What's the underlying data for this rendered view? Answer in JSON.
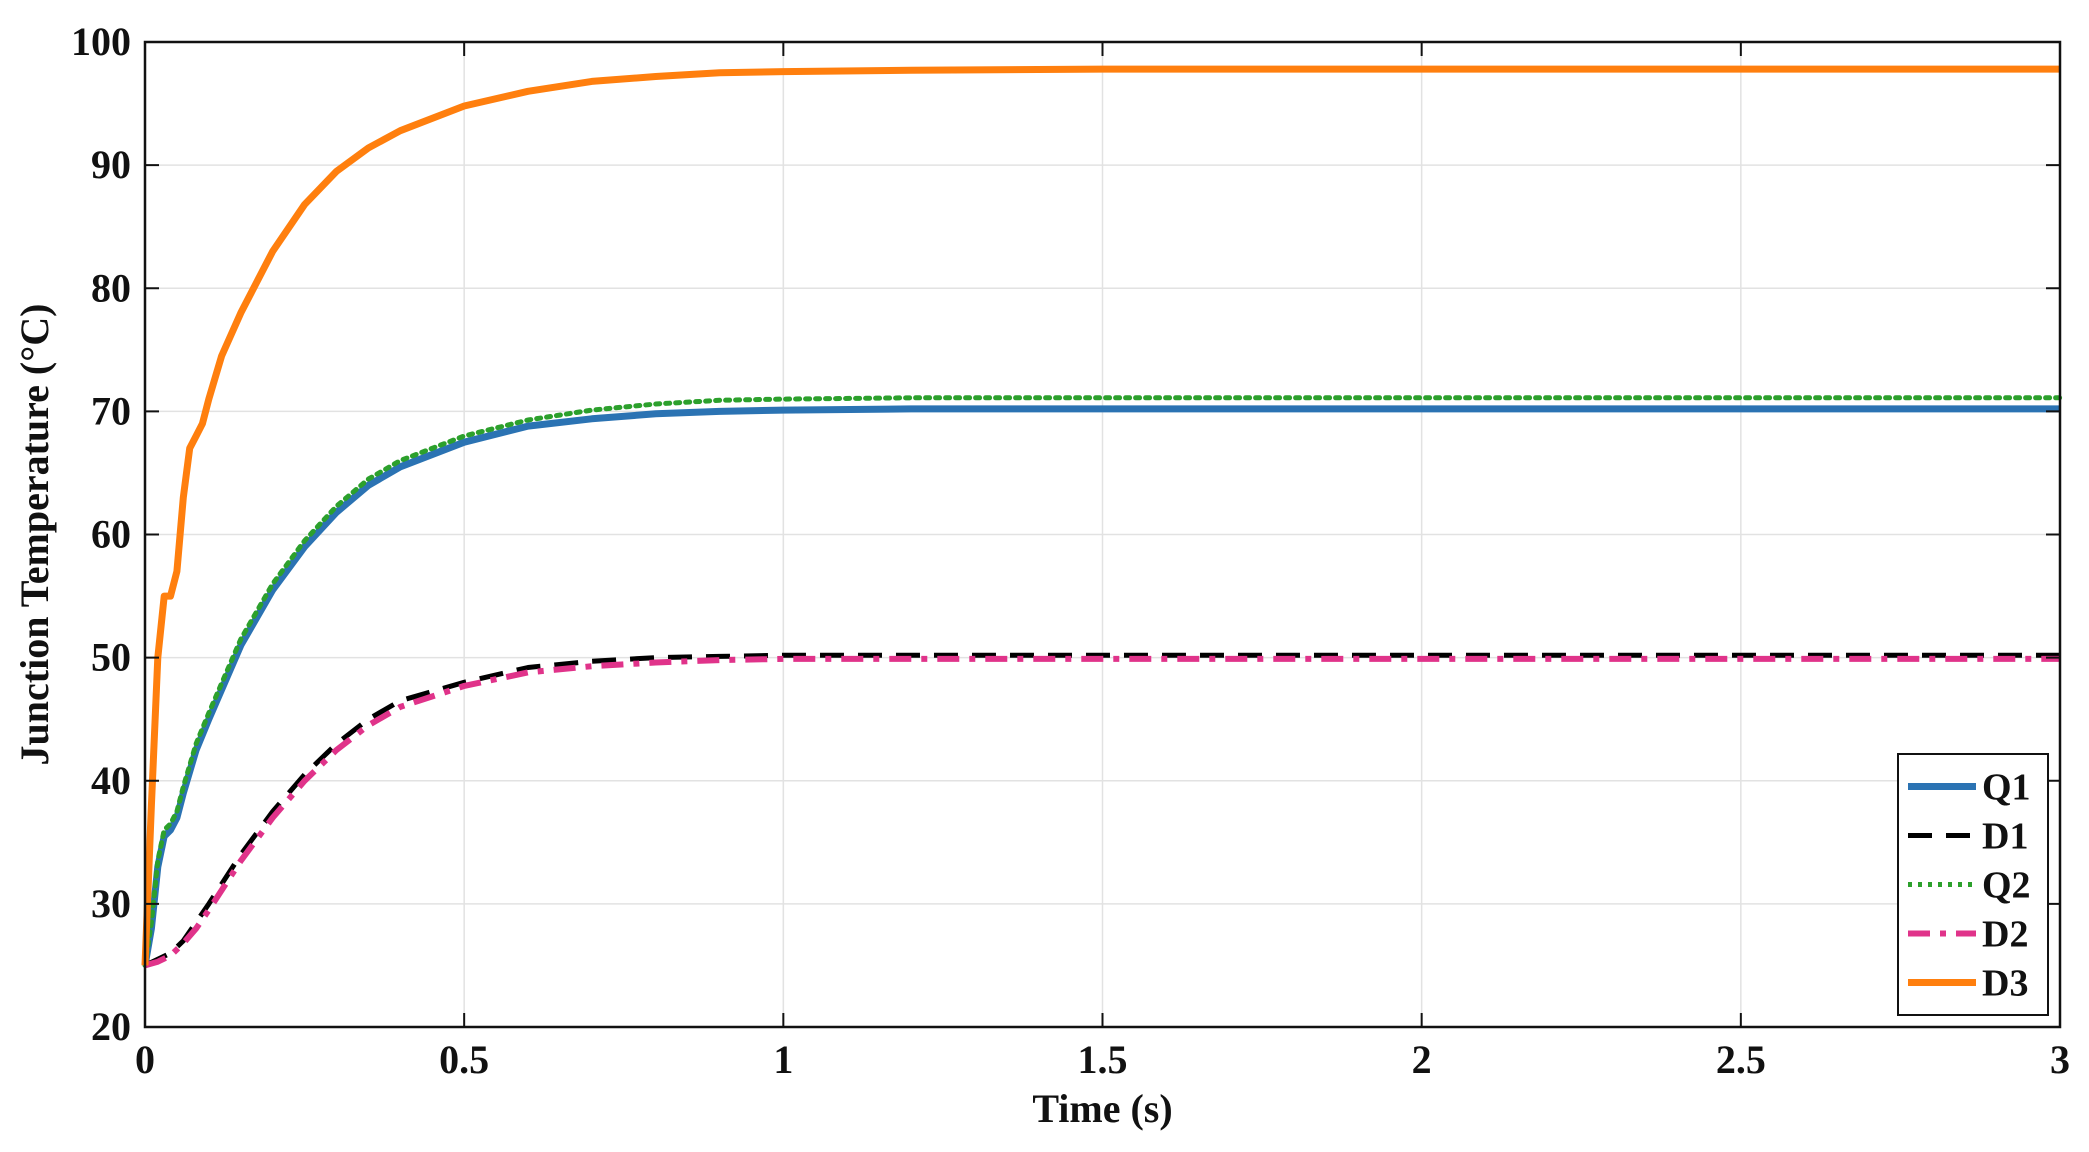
{
  "chart_data": {
    "type": "line",
    "xlabel": "Time (s)",
    "ylabel": "Junction Temperature (°C)",
    "xlim": [
      0,
      3
    ],
    "ylim": [
      20,
      100
    ],
    "xticks": [
      0,
      0.5,
      1,
      1.5,
      2,
      2.5,
      3
    ],
    "xtick_labels": [
      "0",
      "0.5",
      "1",
      "1.5",
      "2",
      "2.5",
      "3"
    ],
    "yticks": [
      20,
      30,
      40,
      50,
      60,
      70,
      80,
      90,
      100
    ],
    "ytick_labels": [
      "20",
      "30",
      "40",
      "50",
      "60",
      "70",
      "80",
      "90",
      "100"
    ],
    "grid": true,
    "legend_position": "bottom-right",
    "series": [
      {
        "name": "Q1",
        "color": "#2b73b3",
        "style": "solid",
        "x": [
          0,
          0.01,
          0.02,
          0.03,
          0.04,
          0.05,
          0.06,
          0.08,
          0.1,
          0.15,
          0.2,
          0.25,
          0.3,
          0.35,
          0.4,
          0.5,
          0.6,
          0.7,
          0.8,
          0.9,
          1.0,
          1.2,
          1.5,
          2.0,
          2.5,
          3.0
        ],
        "y": [
          25,
          28,
          33,
          35.5,
          36,
          37,
          39,
          42.5,
          45,
          51,
          55.5,
          59,
          61.8,
          64,
          65.5,
          67.5,
          68.8,
          69.4,
          69.8,
          70,
          70.1,
          70.2,
          70.2,
          70.2,
          70.2,
          70.2
        ]
      },
      {
        "name": "D1",
        "color": "#000000",
        "style": "dashed",
        "x": [
          0,
          0.02,
          0.04,
          0.06,
          0.08,
          0.1,
          0.15,
          0.2,
          0.25,
          0.3,
          0.35,
          0.4,
          0.5,
          0.6,
          0.7,
          0.8,
          0.9,
          1.0,
          1.2,
          1.5,
          2.0,
          2.5,
          3.0
        ],
        "y": [
          25,
          25.5,
          26,
          27,
          28.5,
          30,
          34,
          37.5,
          40.5,
          43,
          45,
          46.5,
          48,
          49.2,
          49.7,
          50,
          50.1,
          50.2,
          50.2,
          50.2,
          50.2,
          50.2,
          50.2
        ]
      },
      {
        "name": "Q2",
        "color": "#2ca02c",
        "style": "dotted",
        "x": [
          0,
          0.01,
          0.02,
          0.03,
          0.04,
          0.05,
          0.06,
          0.08,
          0.1,
          0.15,
          0.2,
          0.25,
          0.3,
          0.35,
          0.4,
          0.5,
          0.6,
          0.7,
          0.8,
          0.9,
          1.0,
          1.2,
          1.5,
          2.0,
          2.5,
          3.0
        ],
        "y": [
          25,
          28.5,
          33.5,
          36,
          36.5,
          37.5,
          39.5,
          43,
          45.5,
          51.5,
          56,
          59.5,
          62.3,
          64.5,
          66,
          68,
          69.3,
          70.1,
          70.6,
          70.9,
          71,
          71.1,
          71.1,
          71.1,
          71.1,
          71.1
        ]
      },
      {
        "name": "D2",
        "color": "#e0338a",
        "style": "dashdot",
        "x": [
          0,
          0.02,
          0.04,
          0.06,
          0.08,
          0.1,
          0.15,
          0.2,
          0.25,
          0.3,
          0.35,
          0.4,
          0.5,
          0.6,
          0.7,
          0.8,
          0.9,
          1.0,
          1.2,
          1.5,
          2.0,
          2.5,
          3.0
        ],
        "y": [
          25,
          25.3,
          25.8,
          26.8,
          28,
          29.5,
          33.5,
          37,
          40,
          42.5,
          44.5,
          46,
          47.7,
          48.8,
          49.3,
          49.6,
          49.8,
          49.9,
          49.9,
          49.9,
          49.9,
          49.9,
          49.9
        ]
      },
      {
        "name": "D3",
        "color": "#ff7f0e",
        "style": "solid",
        "x": [
          0,
          0.01,
          0.02,
          0.03,
          0.04,
          0.05,
          0.06,
          0.07,
          0.08,
          0.09,
          0.1,
          0.12,
          0.15,
          0.2,
          0.25,
          0.3,
          0.35,
          0.4,
          0.5,
          0.6,
          0.7,
          0.8,
          0.9,
          1.0,
          1.2,
          1.5,
          2.0,
          2.5,
          3.0
        ],
        "y": [
          25,
          38,
          50,
          55,
          55,
          57,
          63,
          67,
          68,
          69,
          71,
          74.5,
          78,
          83,
          86.8,
          89.5,
          91.4,
          92.8,
          94.8,
          96,
          96.8,
          97.2,
          97.5,
          97.6,
          97.7,
          97.8,
          97.8,
          97.8,
          97.8
        ]
      }
    ]
  }
}
